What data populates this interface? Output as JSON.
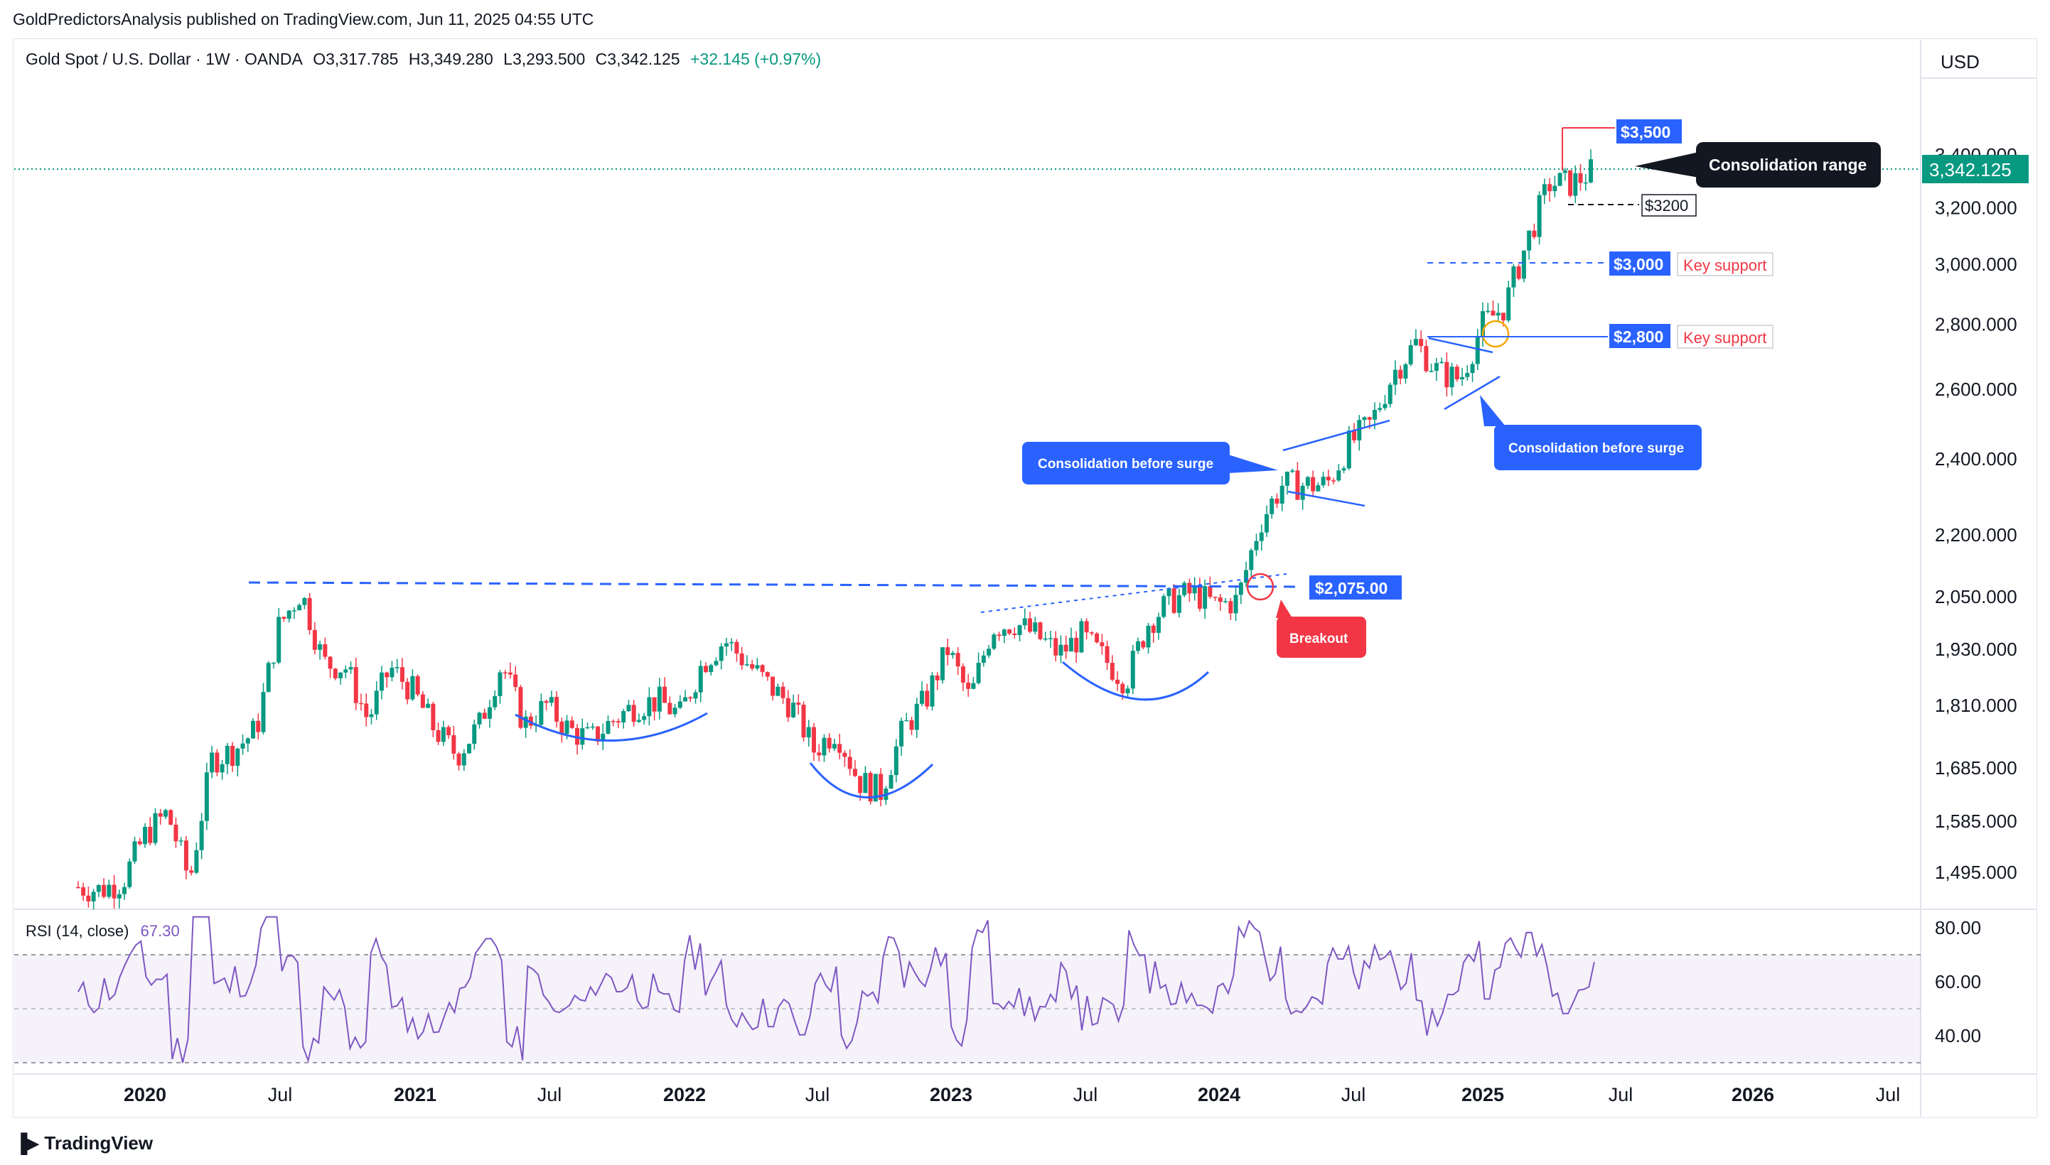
{
  "publisher_line": "GoldPredictorsAnalysis published on TradingView.com, Jun 11, 2025 04:55 UTC",
  "legend": {
    "symbol": "Gold Spot / U.S. Dollar · 1W · OANDA",
    "open": "O3,317.785",
    "high": "H3,349.280",
    "low": "L3,293.500",
    "close": "C3,342.125",
    "change": "+32.145 (+0.97%)"
  },
  "currency": "USD",
  "brand": "TradingView",
  "colors": {
    "up": "#089981",
    "down": "#f23645",
    "blue": "#2962ff",
    "rsi": "#7e57c2",
    "dark": "#131722",
    "red_label": "#f23645"
  },
  "chart_data": [
    {
      "type": "candlestick",
      "title": "Gold Spot / U.S. Dollar · 1W · OANDA",
      "price_axis_ticks": [
        "3,400.000",
        "3,200.000",
        "3,000.000",
        "2,800.000",
        "2,600.000",
        "2,400.000",
        "2,200.000",
        "2,050.000",
        "1,930.000",
        "1,810.000",
        "1,685.000",
        "1,585.000",
        "1,495.000"
      ],
      "current_price_label": "3,342.125",
      "x_axis_labels": [
        {
          "text": "2020",
          "bold": true
        },
        {
          "text": "Jul",
          "bold": false
        },
        {
          "text": "2021",
          "bold": true
        },
        {
          "text": "Jul",
          "bold": false
        },
        {
          "text": "2022",
          "bold": true
        },
        {
          "text": "Jul",
          "bold": false
        },
        {
          "text": "2023",
          "bold": true
        },
        {
          "text": "Jul",
          "bold": false
        },
        {
          "text": "2024",
          "bold": true
        },
        {
          "text": "Jul",
          "bold": false
        },
        {
          "text": "2025",
          "bold": true
        },
        {
          "text": "Jul",
          "bold": false
        },
        {
          "text": "2026",
          "bold": true
        },
        {
          "text": "Jul",
          "bold": false
        }
      ],
      "close_path": [
        [
          "2019-10",
          1470
        ],
        [
          "2019-11",
          1465
        ],
        [
          "2019-12",
          1480
        ],
        [
          "2020-01",
          1560
        ],
        [
          "2020-02",
          1600
        ],
        [
          "2020-03",
          1480
        ],
        [
          "2020-04",
          1700
        ],
        [
          "2020-05",
          1720
        ],
        [
          "2020-06",
          1760
        ],
        [
          "2020-07",
          1980
        ],
        [
          "2020-08",
          2063
        ],
        [
          "2020-09",
          1900
        ],
        [
          "2020-10",
          1890
        ],
        [
          "2020-11",
          1780
        ],
        [
          "2020-12",
          1890
        ],
        [
          "2021-01",
          1840
        ],
        [
          "2021-02",
          1760
        ],
        [
          "2021-03",
          1710
        ],
        [
          "2021-04",
          1770
        ],
        [
          "2021-05",
          1900
        ],
        [
          "2021-06",
          1770
        ],
        [
          "2021-07",
          1810
        ],
        [
          "2021-08",
          1760
        ],
        [
          "2021-09",
          1740
        ],
        [
          "2021-10",
          1780
        ],
        [
          "2021-11",
          1810
        ],
        [
          "2021-12",
          1820
        ],
        [
          "2022-01",
          1790
        ],
        [
          "2022-02",
          1900
        ],
        [
          "2022-03",
          1950
        ],
        [
          "2022-04",
          1900
        ],
        [
          "2022-05",
          1850
        ],
        [
          "2022-06",
          1810
        ],
        [
          "2022-07",
          1720
        ],
        [
          "2022-08",
          1760
        ],
        [
          "2022-09",
          1660
        ],
        [
          "2022-10",
          1640
        ],
        [
          "2022-11",
          1760
        ],
        [
          "2022-12",
          1820
        ],
        [
          "2023-01",
          1930
        ],
        [
          "2023-02",
          1820
        ],
        [
          "2023-03",
          1980
        ],
        [
          "2023-04",
          1990
        ],
        [
          "2023-05",
          1960
        ],
        [
          "2023-06",
          1920
        ],
        [
          "2023-07",
          1960
        ],
        [
          "2023-08",
          1910
        ],
        [
          "2023-09",
          1860
        ],
        [
          "2023-10",
          1990
        ],
        [
          "2023-11",
          2040
        ],
        [
          "2023-12",
          2060
        ],
        [
          "2024-01",
          2030
        ],
        [
          "2024-02",
          2040
        ],
        [
          "2024-03",
          2230
        ],
        [
          "2024-04",
          2330
        ],
        [
          "2024-05",
          2330
        ],
        [
          "2024-06",
          2330
        ],
        [
          "2024-07",
          2440
        ],
        [
          "2024-08",
          2500
        ],
        [
          "2024-09",
          2650
        ],
        [
          "2024-10",
          2740
        ],
        [
          "2024-11",
          2650
        ],
        [
          "2024-12",
          2630
        ],
        [
          "2025-01",
          2800
        ],
        [
          "2025-02",
          2860
        ],
        [
          "2025-03",
          3080
        ],
        [
          "2025-04",
          3290
        ],
        [
          "2025-05",
          3290
        ],
        [
          "2025-06",
          3342
        ]
      ],
      "horizontal_levels": [
        {
          "label": "$3,500",
          "value": 3500
        },
        {
          "label": "$3200",
          "value": 3200
        },
        {
          "label": "$3,000",
          "value": 3000,
          "note": "Key support"
        },
        {
          "label": "$2,800",
          "value": 2800,
          "note": "Key support"
        },
        {
          "label": "$2,075.00",
          "value": 2075
        }
      ],
      "annotations": {
        "consolidation_range": "Consolidation range",
        "consolidation_before_surge_1": "Consolidation before surge",
        "consolidation_before_surge_2": "Consolidation before surge",
        "breakout": "Breakout",
        "key_support_1": "Key support",
        "key_support_2": "Key support"
      }
    },
    {
      "type": "line",
      "title": "RSI (14, close)",
      "current_value": "67.30",
      "ticks": [
        "80.00",
        "60.00",
        "40.00"
      ],
      "band": [
        30,
        70
      ],
      "midline": 50
    }
  ]
}
